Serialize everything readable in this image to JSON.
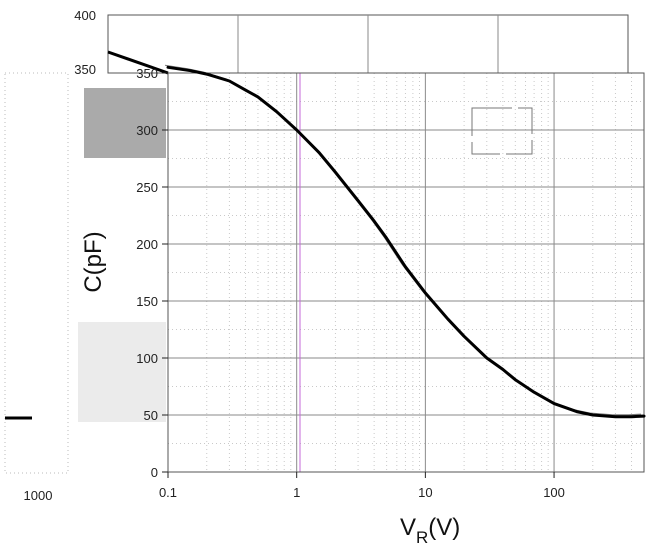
{
  "chart_data": {
    "type": "line",
    "xlabel_main": "V",
    "xlabel_sub": "R",
    "xlabel_unit": "(V)",
    "ylabel": "C(pF)",
    "x_scale": "log",
    "xlim": [
      0.1,
      500
    ],
    "ylim": [
      0,
      350
    ],
    "x_ticks": [
      {
        "value": 0.1,
        "label": "0.1"
      },
      {
        "value": 1,
        "label": "1"
      },
      {
        "value": 10,
        "label": "10"
      },
      {
        "value": 100,
        "label": "100"
      }
    ],
    "y_ticks": [
      {
        "value": 0,
        "label": "0"
      },
      {
        "value": 50,
        "label": "50"
      },
      {
        "value": 100,
        "label": "100"
      },
      {
        "value": 150,
        "label": "150"
      },
      {
        "value": 200,
        "label": "200"
      },
      {
        "value": 250,
        "label": "250"
      },
      {
        "value": 300,
        "label": "300"
      },
      {
        "value": 350,
        "label": "350"
      }
    ],
    "ghost_labels": {
      "y_top": "400",
      "y_second": "350",
      "x_left": "1000"
    },
    "grid": true,
    "series": [
      {
        "x": [
          0.1,
          0.15,
          0.2,
          0.3,
          0.4,
          0.5,
          0.7,
          1,
          1.5,
          2,
          3,
          4,
          5,
          7,
          10,
          15,
          20,
          30,
          40,
          50,
          70,
          100,
          150,
          200,
          300,
          400,
          500
        ],
        "y": [
          355,
          352,
          349,
          343,
          335,
          329,
          316,
          300,
          280,
          263,
          238,
          220,
          205,
          180,
          157,
          134,
          119,
          100,
          90,
          81,
          70,
          60,
          53,
          50,
          48.5,
          48.5,
          49
        ]
      }
    ]
  }
}
